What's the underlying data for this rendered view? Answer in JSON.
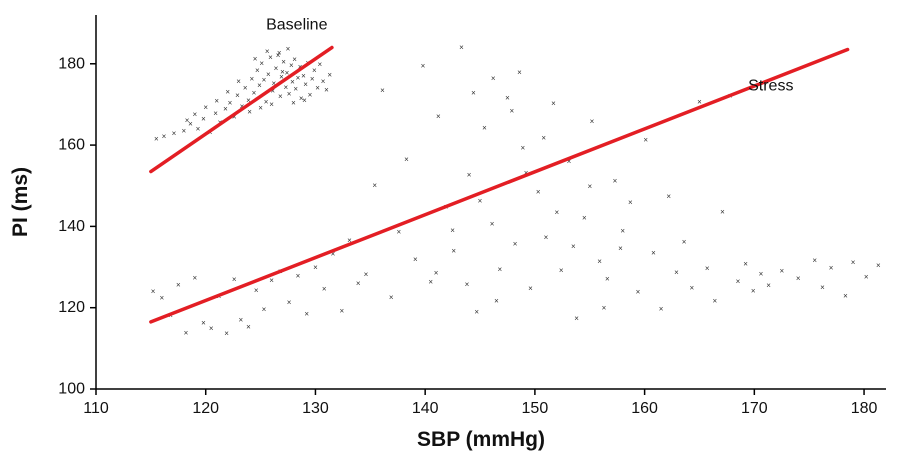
{
  "chart_data": {
    "type": "scatter",
    "title": "",
    "xlabel": "SBP (mmHg)",
    "ylabel": "PI (ms)",
    "xlim": [
      110,
      182
    ],
    "ylim": [
      100,
      192
    ],
    "xticks": [
      110,
      120,
      130,
      140,
      150,
      160,
      170,
      180
    ],
    "yticks": [
      100,
      120,
      140,
      160,
      180
    ],
    "grid": false,
    "marker": "×",
    "colors": {
      "points": "#333333",
      "regression": "#e31e24",
      "axis": "#000000"
    },
    "series": [
      {
        "name": "Baseline",
        "points": [
          [
            115.5,
            161.5
          ],
          [
            116.2,
            162.1
          ],
          [
            117.1,
            162.8
          ],
          [
            118.0,
            163.5
          ],
          [
            118.6,
            165.2
          ],
          [
            119.3,
            164.0
          ],
          [
            119.8,
            166.4
          ],
          [
            120.4,
            163.1
          ],
          [
            120.9,
            167.8
          ],
          [
            121.3,
            165.6
          ],
          [
            121.8,
            168.9
          ],
          [
            122.2,
            170.3
          ],
          [
            122.6,
            166.9
          ],
          [
            122.9,
            172.2
          ],
          [
            123.3,
            169.5
          ],
          [
            123.6,
            174.1
          ],
          [
            123.9,
            171.0
          ],
          [
            124.2,
            176.2
          ],
          [
            124.4,
            172.8
          ],
          [
            124.7,
            178.3
          ],
          [
            124.9,
            174.7
          ],
          [
            125.1,
            180.1
          ],
          [
            125.3,
            176.0
          ],
          [
            125.5,
            170.6
          ],
          [
            125.7,
            177.4
          ],
          [
            125.9,
            181.6
          ],
          [
            126.1,
            173.3
          ],
          [
            126.2,
            175.1
          ],
          [
            126.4,
            178.9
          ],
          [
            126.6,
            182.0
          ],
          [
            126.8,
            171.9
          ],
          [
            126.9,
            176.8
          ],
          [
            127.1,
            180.5
          ],
          [
            127.3,
            174.2
          ],
          [
            127.4,
            177.7
          ],
          [
            127.6,
            172.6
          ],
          [
            127.8,
            179.6
          ],
          [
            127.9,
            175.5
          ],
          [
            128.1,
            181.1
          ],
          [
            128.2,
            173.8
          ],
          [
            128.4,
            176.5
          ],
          [
            128.6,
            179.2
          ],
          [
            128.7,
            171.4
          ],
          [
            128.9,
            177.0
          ],
          [
            129.1,
            174.9
          ],
          [
            129.3,
            180.2
          ],
          [
            129.5,
            172.3
          ],
          [
            129.7,
            176.3
          ],
          [
            129.9,
            178.4
          ],
          [
            130.2,
            174.0
          ],
          [
            130.4,
            179.8
          ],
          [
            130.7,
            175.7
          ],
          [
            131.0,
            173.6
          ],
          [
            131.3,
            177.2
          ],
          [
            124.0,
            168.2
          ],
          [
            125.0,
            169.1
          ],
          [
            126.0,
            170.0
          ],
          [
            127.0,
            178.0
          ],
          [
            128.0,
            170.4
          ],
          [
            129.0,
            171.0
          ],
          [
            125.6,
            183.0
          ],
          [
            126.7,
            182.6
          ],
          [
            127.5,
            183.6
          ],
          [
            124.5,
            181.2
          ],
          [
            123.0,
            175.6
          ],
          [
            122.0,
            173.0
          ],
          [
            121.0,
            170.8
          ],
          [
            120.0,
            169.3
          ],
          [
            119.0,
            167.5
          ],
          [
            118.3,
            166.0
          ]
        ]
      },
      {
        "name": "Stress",
        "points": [
          [
            115.2,
            124.0
          ],
          [
            116.0,
            122.4
          ],
          [
            116.8,
            118.1
          ],
          [
            117.5,
            125.6
          ],
          [
            118.2,
            113.8
          ],
          [
            119.0,
            127.3
          ],
          [
            119.8,
            116.2
          ],
          [
            120.5,
            114.9
          ],
          [
            121.2,
            122.8
          ],
          [
            121.9,
            113.6
          ],
          [
            122.6,
            126.9
          ],
          [
            123.2,
            117.0
          ],
          [
            123.9,
            115.3
          ],
          [
            124.6,
            124.2
          ],
          [
            125.3,
            119.6
          ],
          [
            126.0,
            126.7
          ],
          [
            126.8,
            128.9
          ],
          [
            127.6,
            121.3
          ],
          [
            128.4,
            127.8
          ],
          [
            129.2,
            118.5
          ],
          [
            130.0,
            129.9
          ],
          [
            130.8,
            124.6
          ],
          [
            131.6,
            133.2
          ],
          [
            132.4,
            119.2
          ],
          [
            133.1,
            136.5
          ],
          [
            133.9,
            126.0
          ],
          [
            134.6,
            128.2
          ],
          [
            135.4,
            150.1
          ],
          [
            136.1,
            173.4
          ],
          [
            136.9,
            122.5
          ],
          [
            137.6,
            138.6
          ],
          [
            138.3,
            156.4
          ],
          [
            139.1,
            131.8
          ],
          [
            139.8,
            179.5
          ],
          [
            140.5,
            126.3
          ],
          [
            141.2,
            167.0
          ],
          [
            141.9,
            144.8
          ],
          [
            142.6,
            133.9
          ],
          [
            143.3,
            184.0
          ],
          [
            144.0,
            152.6
          ],
          [
            144.7,
            118.9
          ],
          [
            145.4,
            164.2
          ],
          [
            146.1,
            140.6
          ],
          [
            146.8,
            129.4
          ],
          [
            147.5,
            171.6
          ],
          [
            148.2,
            135.7
          ],
          [
            148.9,
            159.3
          ],
          [
            149.6,
            124.7
          ],
          [
            150.3,
            148.5
          ],
          [
            151.0,
            137.3
          ],
          [
            151.7,
            170.2
          ],
          [
            152.4,
            129.1
          ],
          [
            153.1,
            156.0
          ],
          [
            153.8,
            117.4
          ],
          [
            154.5,
            142.1
          ],
          [
            155.2,
            165.8
          ],
          [
            155.9,
            131.4
          ],
          [
            156.6,
            127.0
          ],
          [
            157.3,
            151.2
          ],
          [
            158.0,
            138.9
          ],
          [
            158.7,
            145.9
          ],
          [
            159.4,
            123.8
          ],
          [
            160.1,
            161.3
          ],
          [
            160.8,
            133.5
          ],
          [
            161.5,
            119.7
          ],
          [
            162.2,
            147.4
          ],
          [
            162.9,
            128.6
          ],
          [
            163.6,
            136.2
          ],
          [
            164.3,
            124.9
          ],
          [
            165.0,
            170.6
          ],
          [
            165.7,
            129.7
          ],
          [
            166.4,
            121.6
          ],
          [
            167.1,
            143.5
          ],
          [
            167.8,
            172.1
          ],
          [
            168.5,
            126.4
          ],
          [
            169.2,
            130.8
          ],
          [
            169.9,
            124.1
          ],
          [
            170.6,
            128.3
          ],
          [
            171.3,
            125.5
          ],
          [
            172.5,
            129.0
          ],
          [
            174.0,
            127.2
          ],
          [
            175.5,
            131.6
          ],
          [
            176.2,
            125.0
          ],
          [
            177.0,
            129.8
          ],
          [
            178.3,
            122.9
          ],
          [
            179.0,
            131.1
          ],
          [
            180.2,
            127.5
          ],
          [
            181.3,
            130.4
          ],
          [
            141.0,
            128.5
          ],
          [
            142.5,
            139.0
          ],
          [
            143.8,
            125.7
          ],
          [
            145.0,
            146.3
          ],
          [
            146.5,
            121.7
          ],
          [
            147.9,
            168.4
          ],
          [
            149.2,
            153.1
          ],
          [
            150.8,
            161.7
          ],
          [
            152.0,
            143.4
          ],
          [
            153.5,
            135.0
          ],
          [
            155.0,
            149.8
          ],
          [
            156.3,
            119.9
          ],
          [
            157.8,
            134.6
          ],
          [
            144.4,
            172.8
          ],
          [
            146.2,
            176.4
          ],
          [
            148.6,
            177.8
          ]
        ]
      }
    ],
    "regression_lines": [
      {
        "name": "Baseline",
        "x": [
          115,
          131.5
        ],
        "y": [
          153.5,
          184.0
        ]
      },
      {
        "name": "Stress",
        "x": [
          115,
          178.5
        ],
        "y": [
          116.5,
          183.5
        ]
      }
    ],
    "annotations": [
      {
        "text": "Baseline",
        "x": 128.3,
        "y": 189.5
      },
      {
        "text": "Stress",
        "x": 171.5,
        "y": 174.5
      }
    ]
  }
}
